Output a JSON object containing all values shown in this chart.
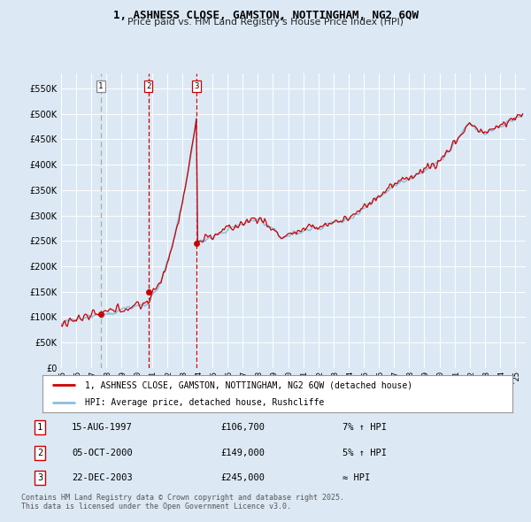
{
  "title_line1": "1, ASHNESS CLOSE, GAMSTON, NOTTINGHAM, NG2 6QW",
  "title_line2": "Price paid vs. HM Land Registry's House Price Index (HPI)",
  "bg_color": "#dce9f5",
  "grid_color": "#ffffff",
  "line_color_hpi": "#8bbfdc",
  "line_color_price": "#cc0000",
  "marker_color": "#cc0000",
  "vline_color_1": "#aaaaaa",
  "vline_color_23": "#cc0000",
  "ylim": [
    0,
    580000
  ],
  "yticks": [
    0,
    50000,
    100000,
    150000,
    200000,
    250000,
    300000,
    350000,
    400000,
    450000,
    500000,
    550000
  ],
  "xlim_start": 1995.0,
  "xlim_end": 2025.7,
  "sale1_date": 1997.62,
  "sale1_price": 106700,
  "sale2_date": 2000.76,
  "sale2_price": 149000,
  "sale3_date": 2003.97,
  "sale3_price": 245000,
  "legend_label_price": "1, ASHNESS CLOSE, GAMSTON, NOTTINGHAM, NG2 6QW (detached house)",
  "legend_label_hpi": "HPI: Average price, detached house, Rushcliffe",
  "table_rows": [
    {
      "num": "1",
      "date": "15-AUG-1997",
      "price": "£106,700",
      "change": "7% ↑ HPI"
    },
    {
      "num": "2",
      "date": "05-OCT-2000",
      "price": "£149,000",
      "change": "5% ↑ HPI"
    },
    {
      "num": "3",
      "date": "22-DEC-2003",
      "price": "£245,000",
      "change": "≈ HPI"
    }
  ],
  "footer": "Contains HM Land Registry data © Crown copyright and database right 2025.\nThis data is licensed under the Open Government Licence v3.0."
}
